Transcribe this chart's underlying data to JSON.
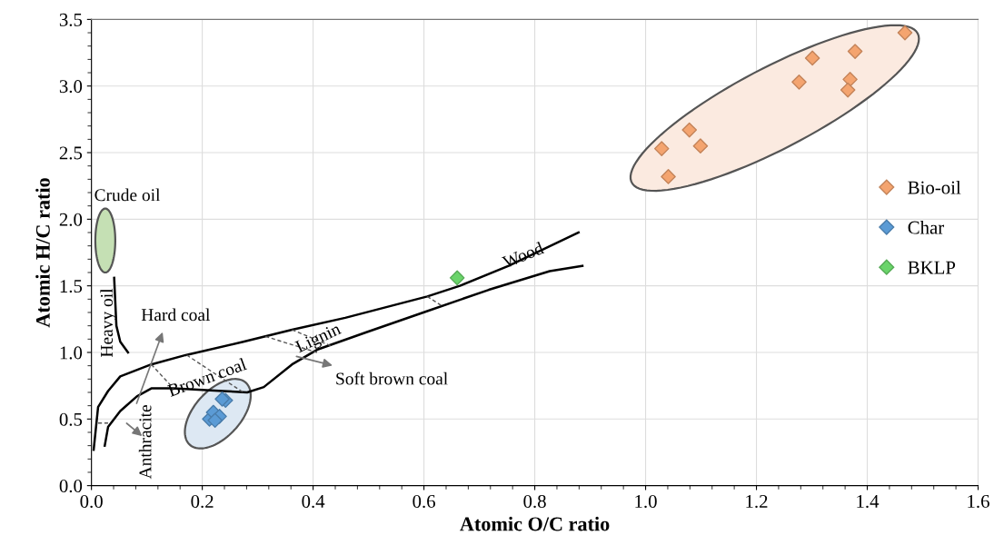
{
  "chart_data": {
    "type": "scatter",
    "xlabel": "Atomic O/C ratio",
    "ylabel": "Atomic H/C ratio",
    "xlim": [
      0,
      1.6
    ],
    "ylim": [
      0,
      3.5
    ],
    "xticks": [
      {
        "value": 0,
        "label": "0.0"
      },
      {
        "value": 0.2,
        "label": "0.2"
      },
      {
        "value": 0.4,
        "label": "0.4"
      },
      {
        "value": 0.6,
        "label": "0.6"
      },
      {
        "value": 0.8,
        "label": "0.8"
      },
      {
        "value": 1.0,
        "label": "1.0"
      },
      {
        "value": 1.2,
        "label": "1.2"
      },
      {
        "value": 1.4,
        "label": "1.4"
      },
      {
        "value": 1.6,
        "label": "1.6"
      }
    ],
    "yticks": [
      {
        "value": 0,
        "label": "0.0"
      },
      {
        "value": 0.5,
        "label": "0.5"
      },
      {
        "value": 1.0,
        "label": "1.0"
      },
      {
        "value": 1.5,
        "label": "1.5"
      },
      {
        "value": 2.0,
        "label": "2.0"
      },
      {
        "value": 2.5,
        "label": "2.5"
      },
      {
        "value": 3.0,
        "label": "3.0"
      },
      {
        "value": 3.5,
        "label": "3.5"
      }
    ],
    "grid": true,
    "legend": "right",
    "marker": "diamond",
    "series": [
      {
        "name": "Bio-oil",
        "color": "#f4a46f",
        "x": [
          1.468,
          1.301,
          1.378,
          1.277,
          1.369,
          1.365,
          1.079,
          1.029,
          1.099,
          1.041
        ],
        "values": [
          3.4,
          3.21,
          3.26,
          3.03,
          3.05,
          2.97,
          2.67,
          2.53,
          2.55,
          2.32
        ]
      },
      {
        "name": "Char",
        "color": "#5b9bd5",
        "x": [
          0.242,
          0.236,
          0.213,
          0.22,
          0.231,
          0.223
        ],
        "values": [
          0.64,
          0.65,
          0.5,
          0.55,
          0.52,
          0.49
        ]
      },
      {
        "name": "BKLP",
        "color": "#6ad46a",
        "x": [
          0.66
        ],
        "values": [
          1.56
        ]
      },
      {
        "type": "line",
        "color": "#000000",
        "marker": "none",
        "x": [
          0.004,
          0.012,
          0.03,
          0.052,
          0.108,
          0.17,
          0.274,
          0.362,
          0.458,
          0.606,
          0.665,
          0.753,
          0.879
        ],
        "values": [
          0.27,
          0.59,
          0.71,
          0.82,
          0.91,
          0.98,
          1.08,
          1.17,
          1.26,
          1.42,
          1.5,
          1.65,
          1.9
        ]
      },
      {
        "type": "line",
        "color": "#000000",
        "marker": "none",
        "x": [
          0.024,
          0.03,
          0.052,
          0.082,
          0.108,
          0.148,
          0.237,
          0.281,
          0.311,
          0.362,
          0.407,
          0.495,
          0.606,
          0.717,
          0.827,
          0.886
        ],
        "values": [
          0.3,
          0.44,
          0.56,
          0.67,
          0.73,
          0.73,
          0.71,
          0.7,
          0.74,
          0.91,
          1.02,
          1.15,
          1.31,
          1.47,
          1.61,
          1.65
        ]
      },
      {
        "type": "line",
        "color": "#000000",
        "marker": "none",
        "x": [
          0.041,
          0.045,
          0.052,
          0.066
        ],
        "values": [
          1.56,
          1.2,
          1.08,
          1.0
        ]
      },
      {
        "type": "line",
        "color": "#555555",
        "marker": "none",
        "line_style": "dashed",
        "x": [
          0.108,
          0.148
        ],
        "values": [
          0.91,
          0.73
        ]
      },
      {
        "type": "line",
        "color": "#555555",
        "marker": "none",
        "line_style": "dashed",
        "x": [
          0.172,
          0.274
        ],
        "values": [
          0.98,
          0.7
        ]
      },
      {
        "type": "line",
        "color": "#555555",
        "marker": "none",
        "line_style": "dashed",
        "x": [
          0.314,
          0.407
        ],
        "values": [
          1.12,
          1.0
        ]
      },
      {
        "type": "line",
        "color": "#555555",
        "marker": "none",
        "line_style": "dashed",
        "x": [
          0.362,
          0.432
        ],
        "values": [
          1.17,
          1.05
        ]
      },
      {
        "type": "line",
        "color": "#555555",
        "marker": "none",
        "line_style": "dashed",
        "x": [
          0.606,
          0.632
        ],
        "values": [
          1.42,
          1.35
        ]
      },
      {
        "type": "line",
        "color": "#555555",
        "marker": "none",
        "line_style": "dashed",
        "x": [
          0.012,
          0.03
        ],
        "values": [
          0.47,
          0.47
        ]
      }
    ],
    "annotations": [
      "Crude oil",
      "Heavy oil",
      "Hard coal",
      "Brown coal",
      {
        "text": "Lignin",
        "x": 0.41,
        "y": 1.1
      },
      {
        "text": "Wood",
        "x": 0.78,
        "y": 1.72
      },
      {
        "text": "Soft brown coal",
        "x": 0.37,
        "y": 0.97
      },
      "Anthracite"
    ]
  }
}
